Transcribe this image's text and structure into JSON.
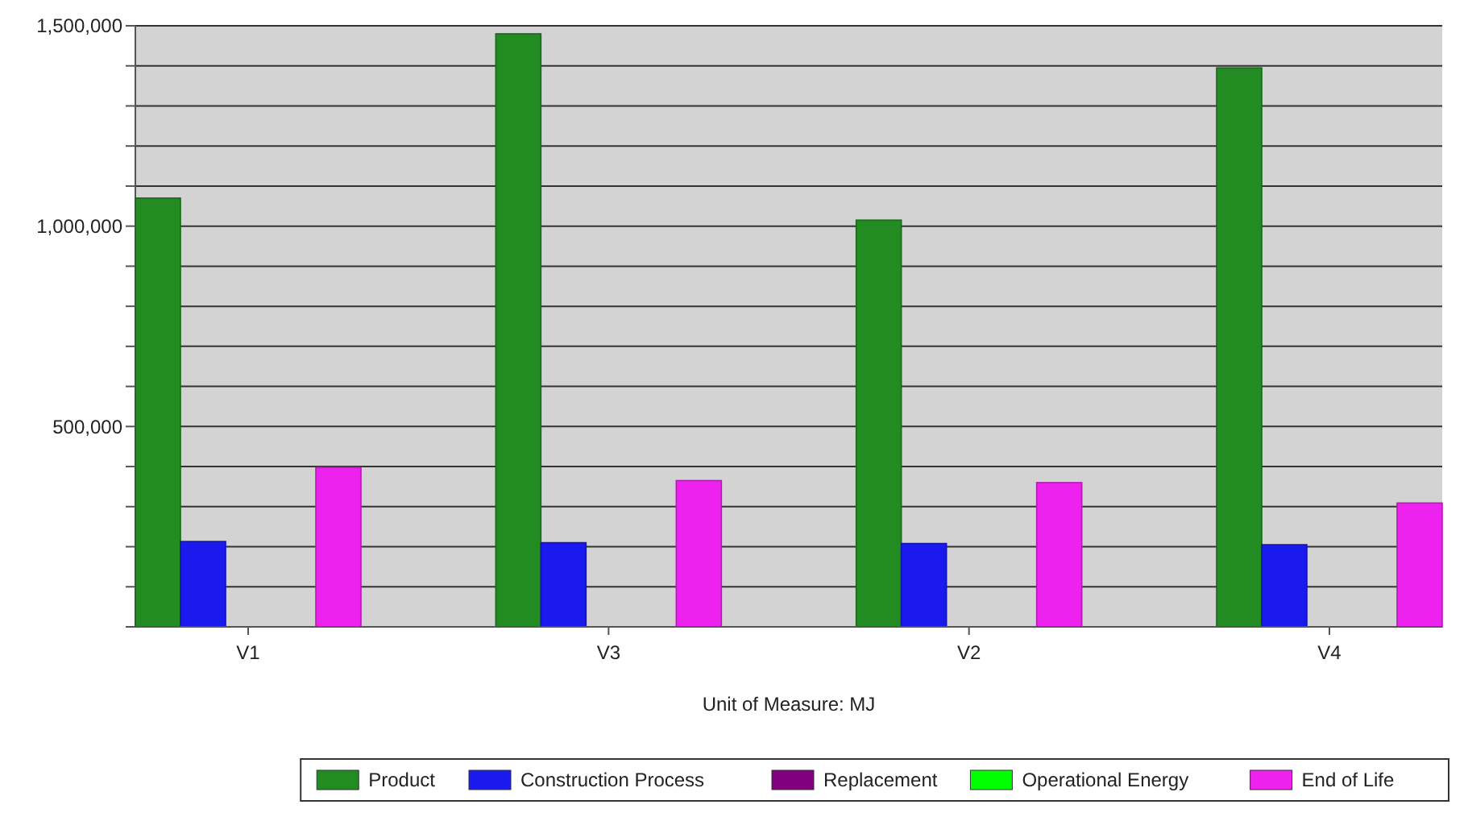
{
  "chart_data": {
    "type": "bar",
    "xlabel": "Unit of Measure: MJ",
    "categories": [
      "V1",
      "V3",
      "V2",
      "V4"
    ],
    "series": [
      {
        "name": "Product",
        "color": "#228b22",
        "values": [
          1070000,
          1480000,
          1015000,
          1395000
        ]
      },
      {
        "name": "Construction Process",
        "color": "#1a1aee",
        "values": [
          213000,
          210000,
          208000,
          205000
        ]
      },
      {
        "name": "Replacement",
        "color": "#800080",
        "values": [
          0,
          0,
          0,
          0
        ]
      },
      {
        "name": "Operational Energy",
        "color": "#00ff00",
        "values": [
          0,
          0,
          0,
          0
        ]
      },
      {
        "name": "End of Life",
        "color": "#ee22ee",
        "values": [
          398000,
          365000,
          360000,
          309000
        ]
      }
    ],
    "ylim": [
      0,
      1500000
    ],
    "yticks": [
      {
        "value": 0,
        "label": null
      },
      {
        "value": 100000,
        "label": null
      },
      {
        "value": 200000,
        "label": null
      },
      {
        "value": 300000,
        "label": null
      },
      {
        "value": 400000,
        "label": null
      },
      {
        "value": 500000,
        "label": "500,000"
      },
      {
        "value": 600000,
        "label": null
      },
      {
        "value": 700000,
        "label": null
      },
      {
        "value": 800000,
        "label": null
      },
      {
        "value": 900000,
        "label": null
      },
      {
        "value": 1000000,
        "label": "1,000,000"
      },
      {
        "value": 1100000,
        "label": null
      },
      {
        "value": 1200000,
        "label": null
      },
      {
        "value": 1300000,
        "label": null
      },
      {
        "value": 1400000,
        "label": null
      },
      {
        "value": 1500000,
        "label": "1,500,000"
      }
    ],
    "grid": true,
    "legend": "bottom"
  }
}
